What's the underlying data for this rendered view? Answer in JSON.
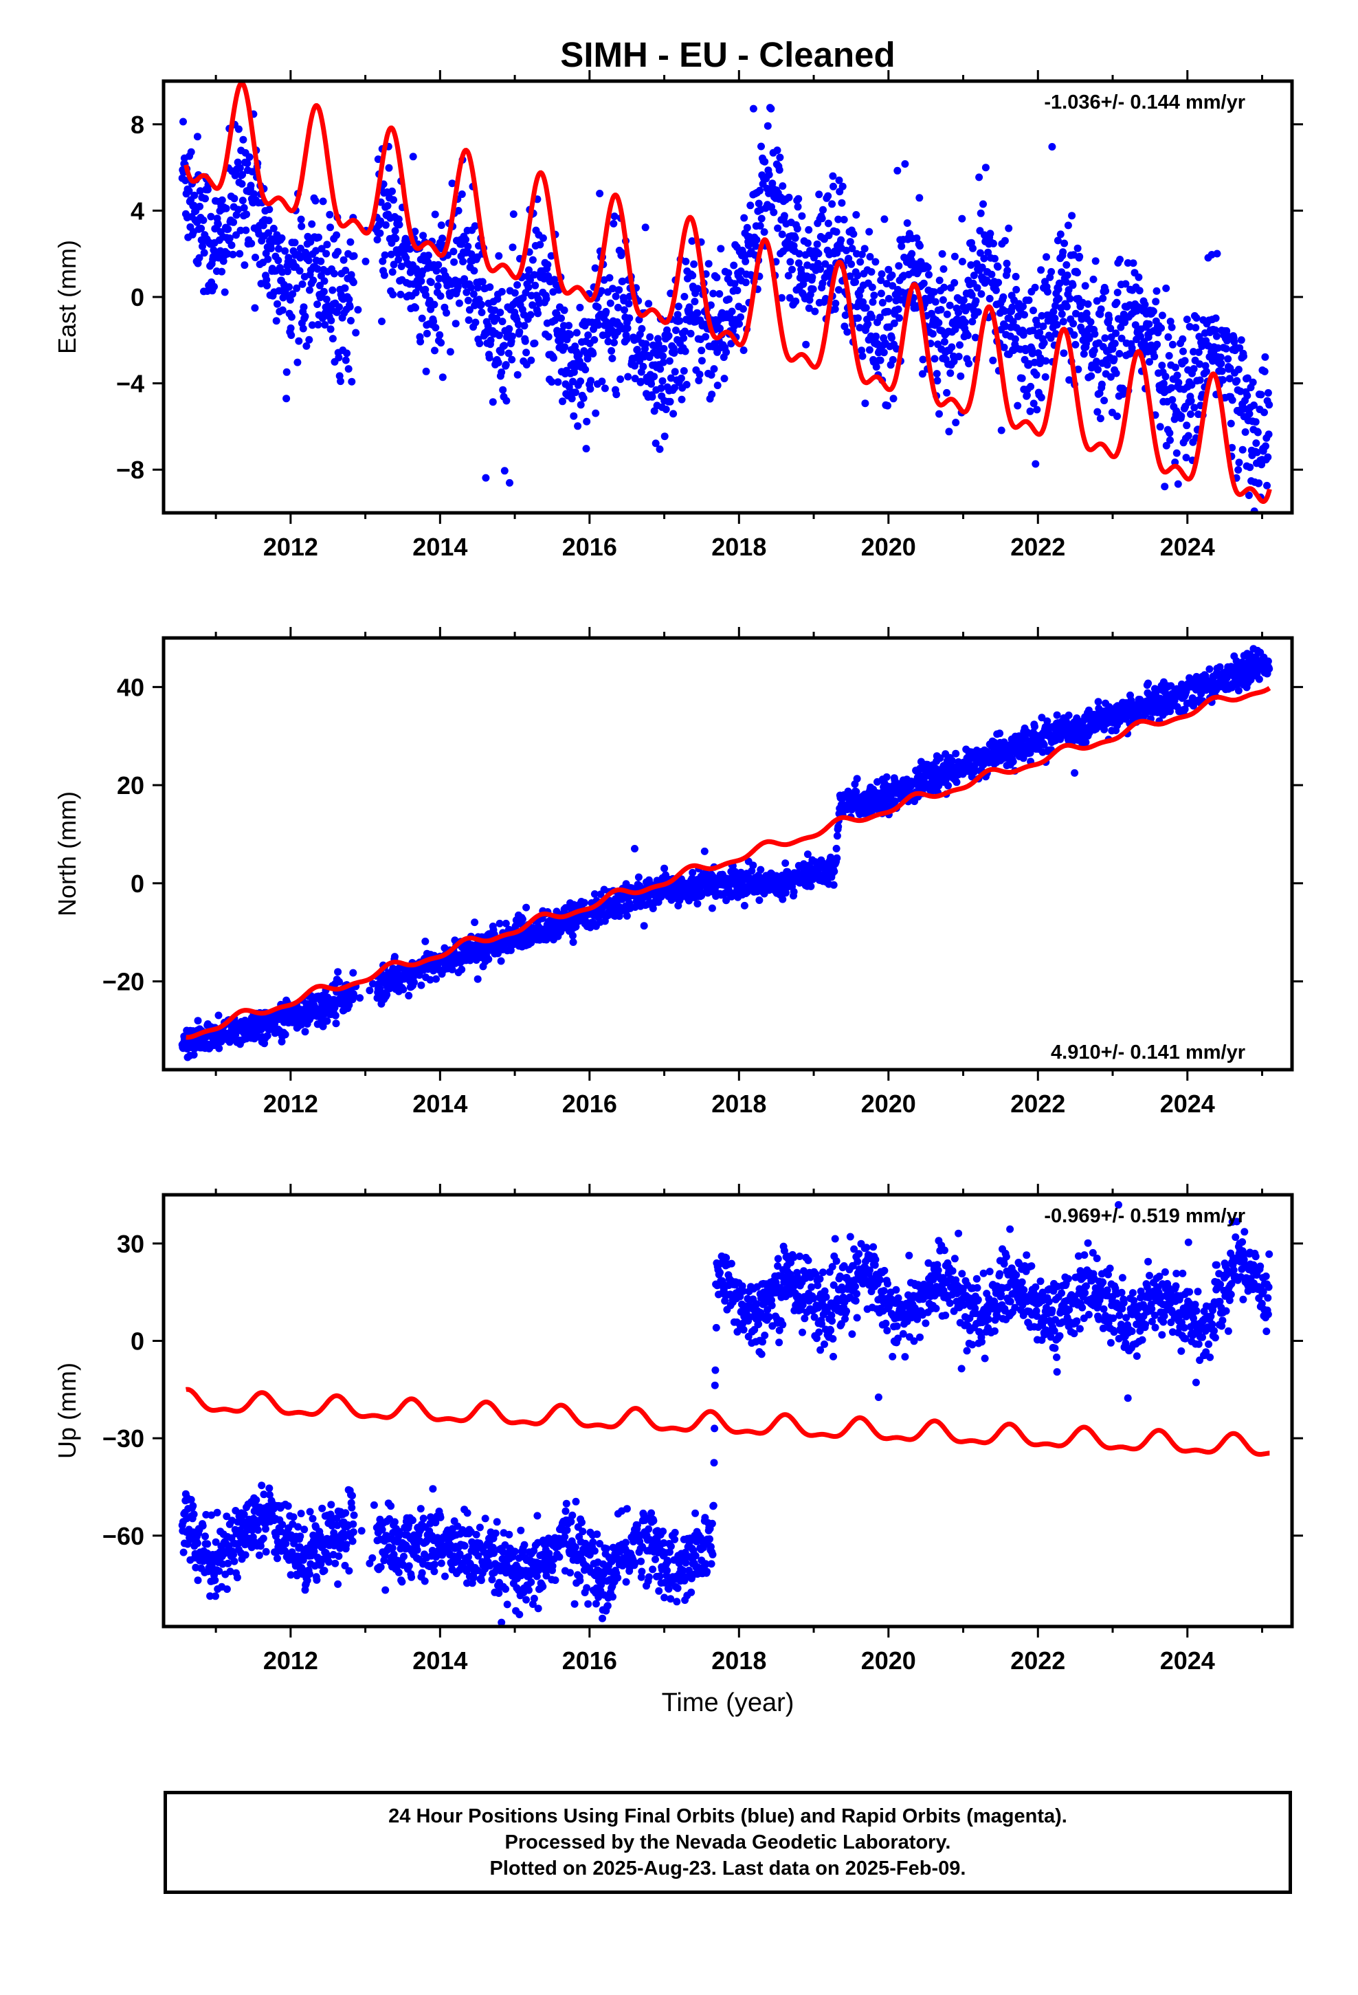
{
  "title": "SIMH  - EU - Cleaned",
  "xlabel": "Time (year)",
  "colors": {
    "data": "#0000ff",
    "model": "#ff0000",
    "axis": "#000000"
  },
  "footer": {
    "line1": "24 Hour Positions Using Final Orbits (blue) and Rapid Orbits (magenta).",
    "line2": "Processed by the Nevada Geodetic Laboratory.",
    "line3": "Plotted on 2025-Aug-23. Last data on 2025-Feb-09."
  },
  "chart_data": [
    {
      "type": "scatter",
      "ylabel": "East (mm)",
      "rate_text": "-1.036+/- 0.144 mm/yr",
      "rate_position": "top-right",
      "xlim": [
        2010.3,
        2025.4
      ],
      "ylim": [
        -10,
        10
      ],
      "x_ticks": [
        2012,
        2014,
        2016,
        2018,
        2020,
        2022,
        2024
      ],
      "y_ticks": [
        8,
        4,
        0,
        -4,
        -8
      ],
      "model": {
        "y0": 7.2,
        "rate": -1.036,
        "amplitude": 2.4,
        "peak_phase": 0.35
      },
      "scatter_profile": {
        "x": [
          2010.55,
          2011.0,
          2011.4,
          2011.9,
          2012.3,
          2012.7,
          2013.3,
          2013.9,
          2014.3,
          2014.8,
          2015.3,
          2015.8,
          2016.4,
          2016.9,
          2017.3,
          2017.8,
          2018.4,
          2018.9,
          2019.3,
          2019.9,
          2020.3,
          2020.8,
          2021.3,
          2021.9,
          2022.3,
          2022.8,
          2023.3,
          2023.9,
          2024.4,
          2024.9,
          2025.1
        ],
        "y": [
          6.0,
          2.0,
          5.5,
          0.2,
          2.0,
          -0.5,
          3.5,
          -0.5,
          2.5,
          -2.5,
          1.0,
          -3.5,
          0.5,
          -4.5,
          -0.5,
          -1.5,
          5.5,
          0.5,
          3.0,
          -2.0,
          1.5,
          -2.5,
          1.5,
          -3.0,
          0.5,
          -3.0,
          -0.5,
          -5.0,
          -2.0,
          -6.5,
          -6.0
        ]
      },
      "scatter_spread": 1.6
    },
    {
      "type": "scatter",
      "ylabel": "North (mm)",
      "rate_text": "4.910+/- 0.141 mm/yr",
      "rate_position": "bottom-right",
      "xlim": [
        2010.3,
        2025.4
      ],
      "ylim": [
        -38,
        50
      ],
      "x_ticks": [
        2012,
        2014,
        2016,
        2018,
        2020,
        2022,
        2024
      ],
      "y_ticks": [
        40,
        20,
        0,
        -20
      ],
      "model": {
        "y0": -31,
        "rate": 4.91,
        "amplitude": 0.9,
        "peak_phase": 0.35
      },
      "scatter_profile": {
        "x": [
          2010.55,
          2011.5,
          2012.5,
          2013.3,
          2014.0,
          2015.0,
          2016.0,
          2017.0,
          2017.7,
          2018.5,
          2019.3,
          2019.35,
          2020.0,
          2021.0,
          2022.0,
          2023.0,
          2024.0,
          2025.1
        ],
        "y": [
          -33,
          -29,
          -25,
          -20,
          -16,
          -11,
          -6,
          -1,
          0,
          0,
          3,
          16,
          18,
          24,
          29,
          34,
          39,
          45
        ]
      },
      "scatter_spread": 1.6
    },
    {
      "type": "scatter",
      "ylabel": "Up (mm)",
      "rate_text": "-0.969+/- 0.519 mm/yr",
      "rate_position": "top-right",
      "xlim": [
        2010.3,
        2025.4
      ],
      "ylim": [
        -88,
        45
      ],
      "x_ticks": [
        2012,
        2014,
        2016,
        2018,
        2020,
        2022,
        2024
      ],
      "y_ticks": [
        30,
        0,
        -30,
        -60
      ],
      "model": {
        "y0": -19,
        "rate": -0.969,
        "amplitude": 2.8,
        "peak_phase": 0.62
      },
      "scatter_profile": {
        "x": [
          2010.55,
          2011.0,
          2011.6,
          2012.2,
          2012.8,
          2013.3,
          2014.0,
          2014.6,
          2015.2,
          2015.7,
          2016.2,
          2016.7,
          2017.2,
          2017.65,
          2017.7,
          2018.2,
          2018.7,
          2019.2,
          2019.7,
          2020.2,
          2020.7,
          2021.2,
          2021.7,
          2022.2,
          2022.7,
          2023.2,
          2023.7,
          2024.2,
          2024.7,
          2025.1
        ],
        "y": [
          -55,
          -68,
          -54,
          -66,
          -56,
          -64,
          -62,
          -68,
          -74,
          -60,
          -74,
          -60,
          -72,
          -62,
          20,
          8,
          20,
          8,
          22,
          6,
          20,
          6,
          18,
          6,
          18,
          4,
          16,
          2,
          26,
          14
        ]
      },
      "scatter_spread": 5.5
    }
  ]
}
